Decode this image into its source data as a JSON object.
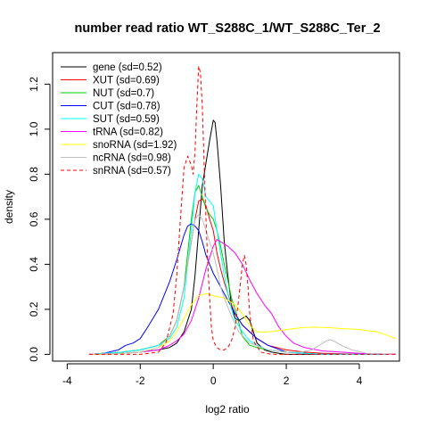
{
  "chart_data": {
    "type": "line",
    "title": "number read ratio WT_S288C_1/WT_S288C_Ter_2",
    "xlabel": "log2 ratio",
    "ylabel": "density",
    "xlim": [
      -4.4,
      5.1
    ],
    "ylim": [
      -0.03,
      1.34
    ],
    "xticks": [
      -4,
      -2,
      0,
      2,
      4
    ],
    "yticks": [
      0.0,
      0.2,
      0.4,
      0.6,
      0.8,
      1.0,
      1.2
    ],
    "xtick_labels": [
      "-4",
      "-2",
      "0",
      "2",
      "4"
    ],
    "ytick_labels": [
      "0.0",
      "0.2",
      "0.4",
      "0.6",
      "0.8",
      "1.0",
      "1.2"
    ],
    "grid": false,
    "legend_position": "top-left",
    "series": [
      {
        "name": "gene (sd=0.52)",
        "color": "#000000",
        "dash": false,
        "x": [
          -3.4,
          -3.0,
          -2.5,
          -2.0,
          -1.5,
          -1.2,
          -1.0,
          -0.8,
          -0.6,
          -0.5,
          -0.4,
          -0.3,
          -0.2,
          -0.1,
          0.0,
          0.05,
          0.1,
          0.2,
          0.3,
          0.4,
          0.5,
          0.6,
          0.7,
          0.8,
          0.9,
          1.0,
          1.1,
          1.2,
          1.4,
          1.6,
          1.8,
          2.0,
          2.5,
          3.0,
          4.0,
          5.0
        ],
        "y": [
          0.0,
          0.0,
          0.005,
          0.01,
          0.02,
          0.03,
          0.05,
          0.1,
          0.2,
          0.35,
          0.55,
          0.75,
          0.85,
          0.95,
          1.04,
          1.03,
          0.95,
          0.75,
          0.5,
          0.35,
          0.22,
          0.16,
          0.15,
          0.16,
          0.17,
          0.15,
          0.1,
          0.05,
          0.02,
          0.01,
          0.005,
          0.0,
          0.0,
          0.0,
          0.0,
          0.0
        ]
      },
      {
        "name": "XUT (sd=0.69)",
        "color": "#ff0000",
        "dash": false,
        "x": [
          -3.4,
          -3.0,
          -2.5,
          -2.0,
          -1.5,
          -1.2,
          -1.0,
          -0.8,
          -0.6,
          -0.5,
          -0.4,
          -0.3,
          -0.2,
          -0.1,
          0.0,
          0.1,
          0.2,
          0.3,
          0.4,
          0.5,
          0.6,
          0.8,
          1.0,
          1.2,
          1.5,
          2.0,
          2.5,
          3.0,
          4.0,
          5.0
        ],
        "y": [
          0.0,
          0.005,
          0.01,
          0.02,
          0.04,
          0.08,
          0.15,
          0.3,
          0.5,
          0.6,
          0.68,
          0.69,
          0.66,
          0.6,
          0.55,
          0.45,
          0.38,
          0.32,
          0.27,
          0.22,
          0.18,
          0.13,
          0.1,
          0.07,
          0.04,
          0.02,
          0.01,
          0.005,
          0.0,
          0.0
        ]
      },
      {
        "name": "NUT (sd=0.7)",
        "color": "#00cc00",
        "dash": false,
        "x": [
          -3.4,
          -3.0,
          -2.5,
          -2.0,
          -1.5,
          -1.2,
          -1.0,
          -0.8,
          -0.6,
          -0.5,
          -0.4,
          -0.3,
          -0.2,
          -0.1,
          0.0,
          0.1,
          0.2,
          0.3,
          0.4,
          0.5,
          0.6,
          0.7,
          0.8,
          1.0,
          1.2,
          1.5,
          2.0,
          2.5,
          3.0,
          4.0,
          5.0
        ],
        "y": [
          0.0,
          0.005,
          0.01,
          0.02,
          0.04,
          0.08,
          0.15,
          0.3,
          0.6,
          0.72,
          0.75,
          0.7,
          0.65,
          0.62,
          0.6,
          0.55,
          0.48,
          0.4,
          0.33,
          0.25,
          0.2,
          0.14,
          0.08,
          0.04,
          0.03,
          0.02,
          0.01,
          0.005,
          0.0,
          0.0,
          0.0
        ]
      },
      {
        "name": "CUT (sd=0.78)",
        "color": "#0000ff",
        "dash": false,
        "x": [
          -3.4,
          -3.0,
          -2.6,
          -2.4,
          -2.2,
          -2.0,
          -1.8,
          -1.5,
          -1.2,
          -1.0,
          -0.8,
          -0.7,
          -0.6,
          -0.5,
          -0.4,
          -0.3,
          -0.2,
          -0.1,
          0.0,
          0.2,
          0.4,
          0.6,
          0.8,
          1.0,
          1.2,
          1.5,
          2.0,
          2.5,
          3.0,
          4.0,
          5.0
        ],
        "y": [
          0.0,
          0.005,
          0.02,
          0.04,
          0.05,
          0.07,
          0.12,
          0.2,
          0.32,
          0.42,
          0.53,
          0.57,
          0.58,
          0.57,
          0.55,
          0.5,
          0.44,
          0.4,
          0.36,
          0.3,
          0.24,
          0.18,
          0.13,
          0.1,
          0.07,
          0.04,
          0.01,
          0.005,
          0.0,
          0.0,
          0.0
        ]
      },
      {
        "name": "SUT (sd=0.59)",
        "color": "#00ffff",
        "dash": false,
        "x": [
          -3.4,
          -3.0,
          -2.5,
          -2.0,
          -1.5,
          -1.2,
          -1.0,
          -0.8,
          -0.6,
          -0.5,
          -0.4,
          -0.3,
          -0.2,
          -0.1,
          0.0,
          0.1,
          0.2,
          0.3,
          0.4,
          0.5,
          0.6,
          0.8,
          1.0,
          1.2,
          1.5,
          2.0,
          2.5,
          3.0,
          4.0,
          5.0
        ],
        "y": [
          0.0,
          0.005,
          0.01,
          0.02,
          0.04,
          0.07,
          0.12,
          0.25,
          0.55,
          0.72,
          0.8,
          0.78,
          0.7,
          0.68,
          0.66,
          0.55,
          0.45,
          0.35,
          0.27,
          0.2,
          0.15,
          0.1,
          0.06,
          0.04,
          0.02,
          0.01,
          0.005,
          0.0,
          0.0,
          0.0
        ]
      },
      {
        "name": "tRNA (sd=0.82)",
        "color": "#ff00ff",
        "dash": false,
        "x": [
          -3.4,
          -2.5,
          -2.0,
          -1.5,
          -1.2,
          -1.0,
          -0.8,
          -0.6,
          -0.4,
          -0.2,
          0.0,
          0.1,
          0.2,
          0.4,
          0.6,
          0.8,
          1.0,
          1.2,
          1.4,
          1.6,
          1.8,
          2.0,
          2.2,
          2.5,
          3.0,
          3.5,
          4.0,
          5.0
        ],
        "y": [
          0.0,
          0.005,
          0.01,
          0.02,
          0.04,
          0.06,
          0.09,
          0.15,
          0.25,
          0.38,
          0.48,
          0.51,
          0.5,
          0.48,
          0.45,
          0.4,
          0.33,
          0.27,
          0.22,
          0.18,
          0.12,
          0.08,
          0.05,
          0.03,
          0.015,
          0.01,
          0.005,
          0.0
        ]
      },
      {
        "name": "snoRNA (sd=1.92)",
        "color": "#ffff00",
        "dash": false,
        "x": [
          -3.4,
          -3.0,
          -2.5,
          -2.0,
          -1.5,
          -1.2,
          -1.0,
          -0.8,
          -0.6,
          -0.4,
          -0.2,
          0.0,
          0.3,
          0.6,
          0.8,
          1.0,
          1.2,
          1.5,
          2.0,
          2.5,
          3.0,
          3.5,
          4.0,
          4.5,
          5.0
        ],
        "y": [
          0.0,
          0.0,
          0.005,
          0.01,
          0.03,
          0.06,
          0.1,
          0.16,
          0.22,
          0.26,
          0.27,
          0.26,
          0.25,
          0.22,
          0.18,
          0.13,
          0.1,
          0.1,
          0.11,
          0.12,
          0.12,
          0.115,
          0.11,
          0.1,
          0.07
        ]
      },
      {
        "name": "ncRNA (sd=0.98)",
        "color": "#bebebe",
        "dash": false,
        "x": [
          -3.4,
          -2.5,
          -2.0,
          -1.5,
          -1.2,
          -1.0,
          -0.8,
          -0.6,
          -0.5,
          -0.4,
          -0.3,
          -0.2,
          -0.1,
          0.0,
          0.1,
          0.2,
          0.3,
          0.5,
          0.7,
          1.0,
          1.5,
          2.0,
          2.4,
          2.7,
          2.9,
          3.1,
          3.2,
          3.3,
          3.5,
          3.8,
          4.2,
          5.0
        ],
        "y": [
          0.0,
          0.005,
          0.01,
          0.03,
          0.08,
          0.15,
          0.3,
          0.5,
          0.6,
          0.62,
          0.6,
          0.55,
          0.5,
          0.45,
          0.38,
          0.3,
          0.25,
          0.17,
          0.1,
          0.05,
          0.02,
          0.01,
          0.01,
          0.02,
          0.04,
          0.06,
          0.065,
          0.06,
          0.04,
          0.02,
          0.005,
          0.0
        ]
      },
      {
        "name": "snRNA (sd=0.57)",
        "color": "#ff0000",
        "dash": true,
        "x": [
          -3.4,
          -2.0,
          -1.5,
          -1.3,
          -1.1,
          -1.0,
          -0.9,
          -0.8,
          -0.7,
          -0.6,
          -0.55,
          -0.5,
          -0.45,
          -0.4,
          -0.35,
          -0.3,
          -0.25,
          -0.2,
          -0.15,
          -0.1,
          -0.05,
          0.0,
          0.1,
          0.2,
          0.3,
          0.4,
          0.5,
          0.6,
          0.7,
          0.8,
          0.85,
          0.9,
          0.95,
          1.0,
          1.1,
          1.3,
          1.6,
          2.0,
          3.0,
          5.0
        ],
        "y": [
          0.0,
          0.0,
          0.01,
          0.05,
          0.18,
          0.35,
          0.6,
          0.83,
          0.88,
          0.84,
          0.8,
          0.9,
          1.1,
          1.28,
          1.25,
          1.1,
          0.85,
          0.6,
          0.4,
          0.25,
          0.12,
          0.06,
          0.03,
          0.02,
          0.02,
          0.03,
          0.06,
          0.12,
          0.25,
          0.4,
          0.44,
          0.4,
          0.3,
          0.18,
          0.06,
          0.01,
          0.0,
          0.0,
          0.0,
          0.0
        ]
      }
    ]
  }
}
